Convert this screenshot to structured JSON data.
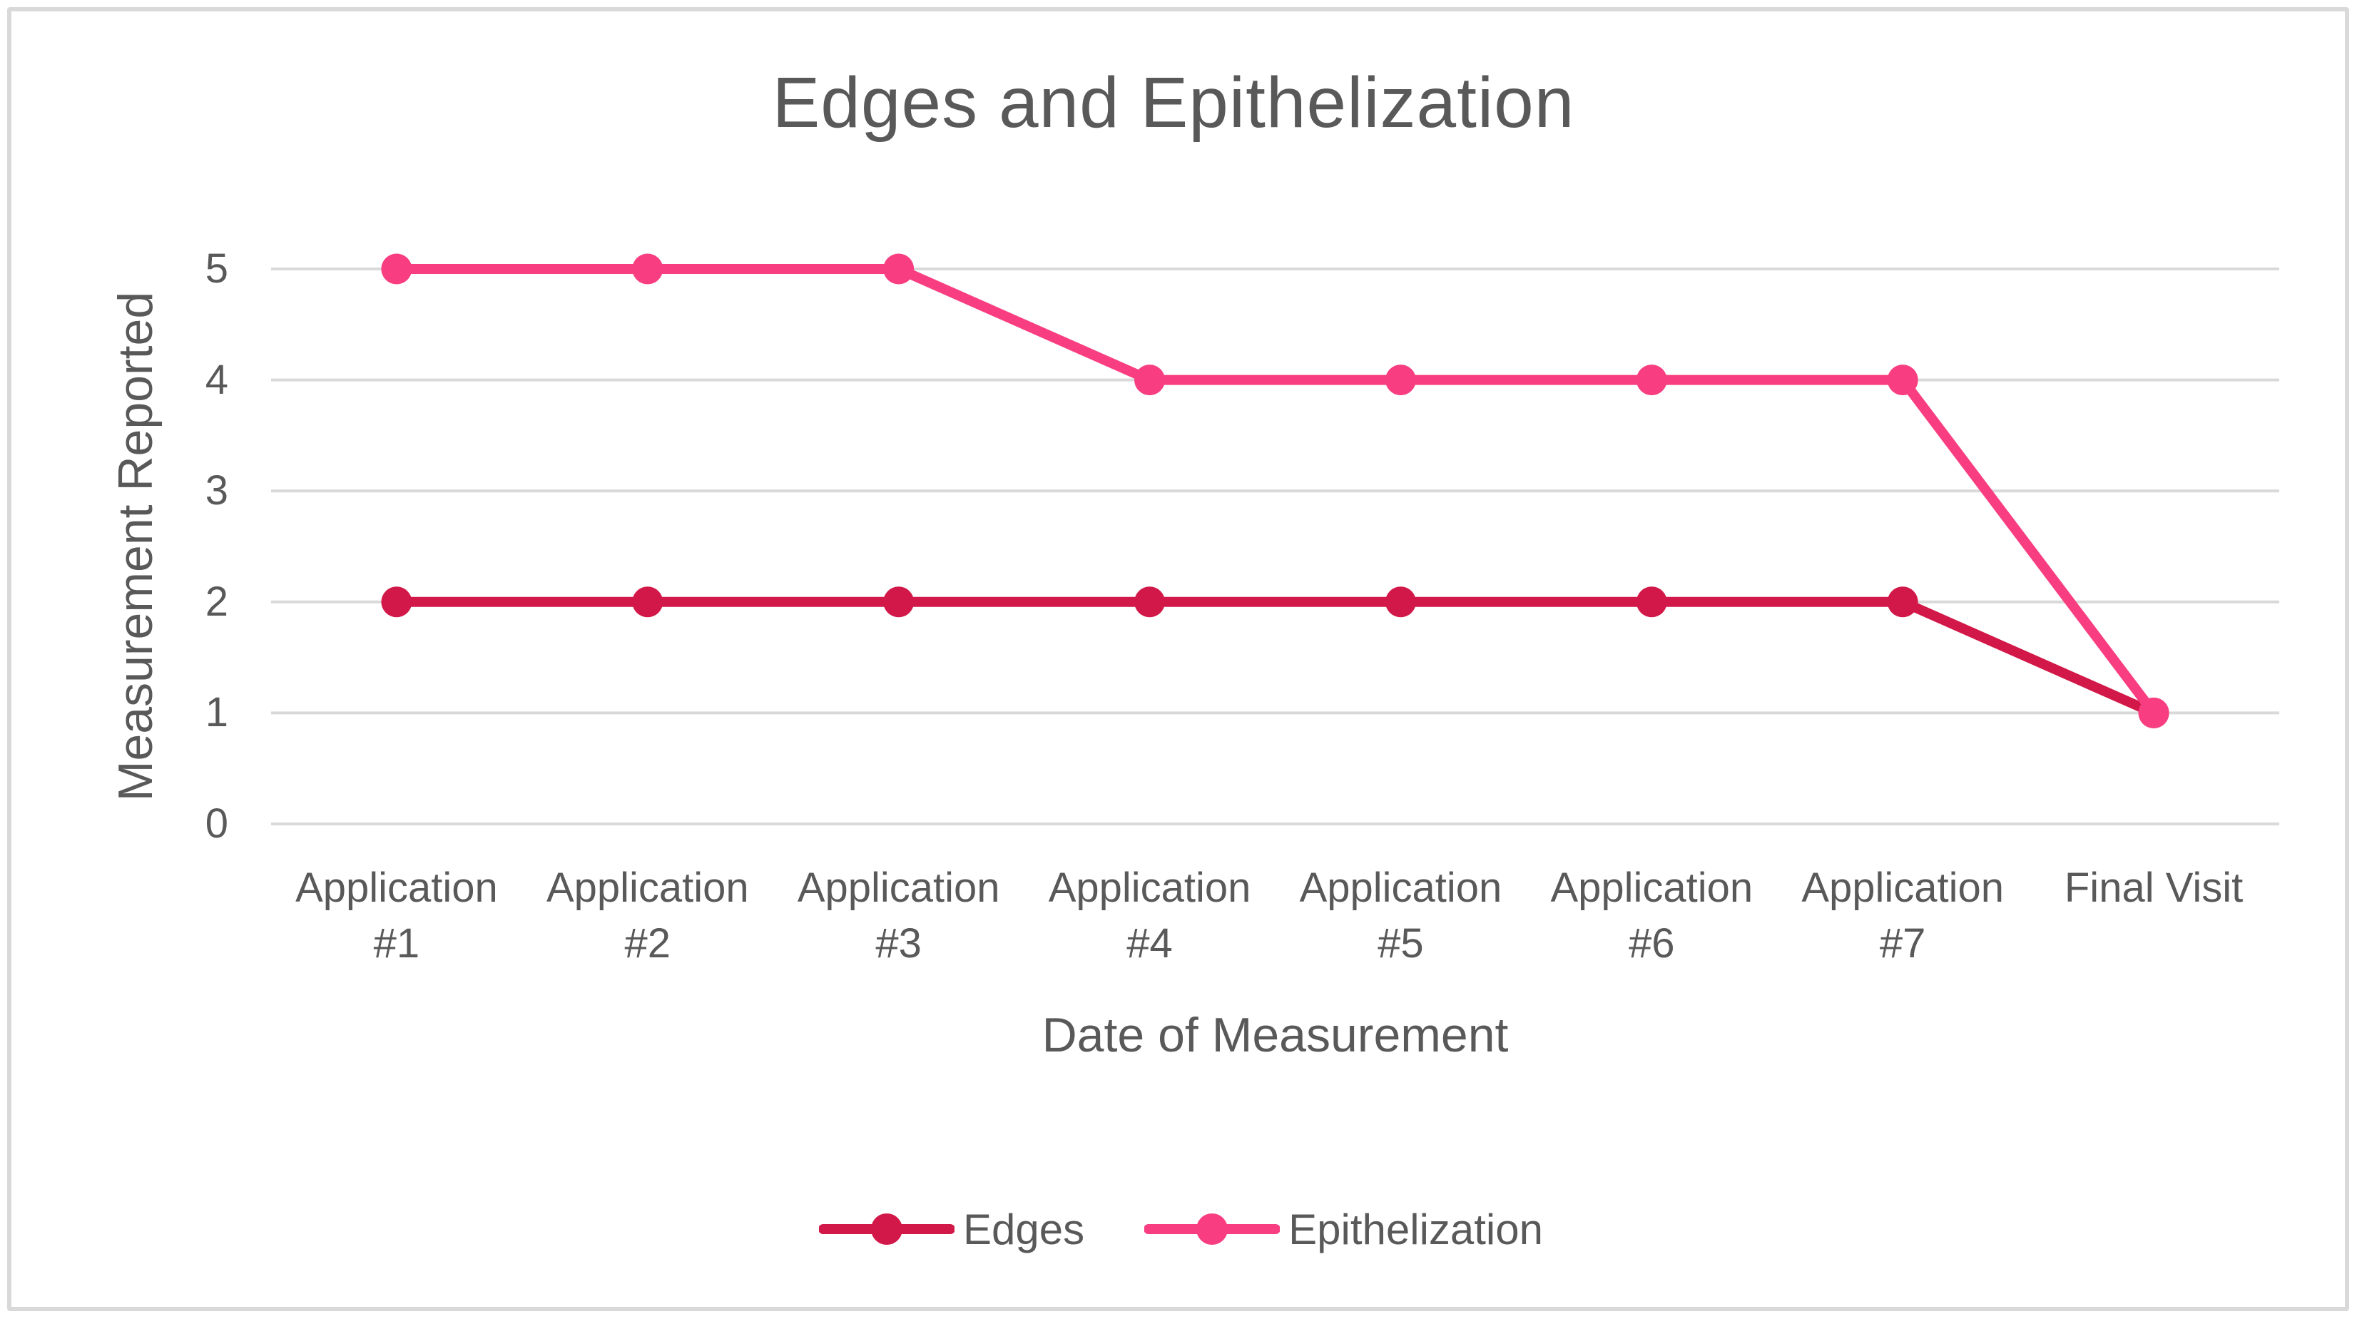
{
  "chart_data": {
    "type": "line",
    "title": "Edges and Epithelization",
    "xlabel": "Date of Measurement",
    "ylabel": "Measurement Reported",
    "categories": [
      "Application #1",
      "Application #2",
      "Application #3",
      "Application #4",
      "Application #5",
      "Application #6",
      "Application #7",
      "Final Visit"
    ],
    "category_label_lines": [
      [
        "Application",
        "#1"
      ],
      [
        "Application",
        "#2"
      ],
      [
        "Application",
        "#3"
      ],
      [
        "Application",
        "#4"
      ],
      [
        "Application",
        "#5"
      ],
      [
        "Application",
        "#6"
      ],
      [
        "Application",
        "#7"
      ],
      [
        "Final Visit"
      ]
    ],
    "series": [
      {
        "name": "Edges",
        "color": "#D21848",
        "values": [
          2,
          2,
          2,
          2,
          2,
          2,
          2,
          1
        ]
      },
      {
        "name": "Epithelization",
        "color": "#F83E80",
        "values": [
          5,
          5,
          5,
          4,
          4,
          4,
          4,
          1
        ]
      }
    ],
    "ylim": [
      0,
      5
    ],
    "yticks": [
      0,
      1,
      2,
      3,
      4,
      5
    ],
    "grid": true,
    "legend_position": "bottom"
  },
  "styles": {
    "text_color": "#595959",
    "gridline_color": "#D9D9D9",
    "border_color": "#D9D9D9",
    "background": "#FFFFFF"
  }
}
